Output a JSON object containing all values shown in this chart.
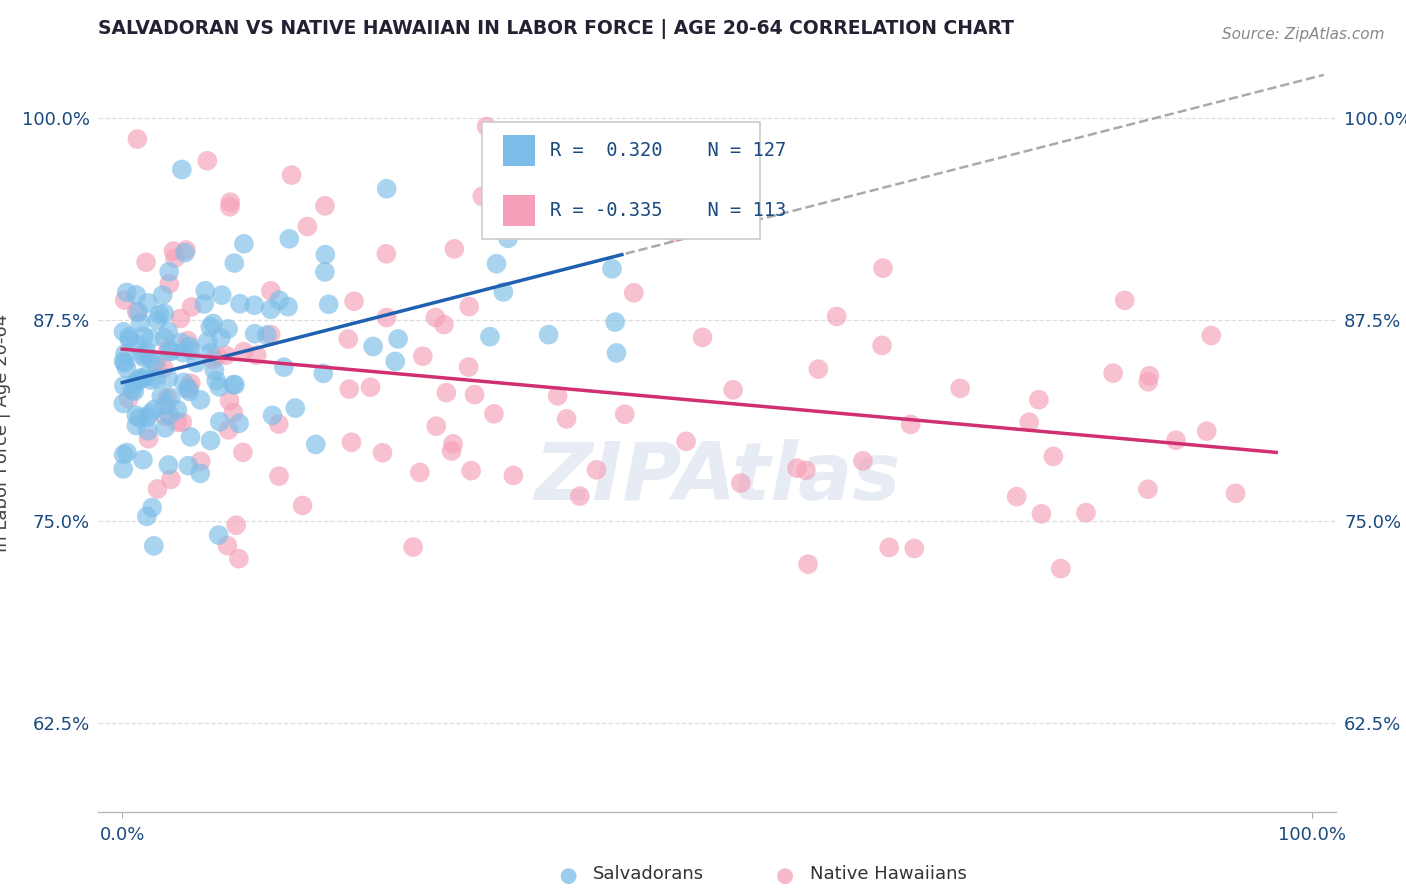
{
  "title": "SALVADORAN VS NATIVE HAWAIIAN IN LABOR FORCE | AGE 20-64 CORRELATION CHART",
  "source": "Source: ZipAtlas.com",
  "ylabel": "In Labor Force | Age 20-64",
  "yticks": [
    0.625,
    0.75,
    0.875,
    1.0
  ],
  "ytick_labels": [
    "62.5%",
    "75.0%",
    "87.5%",
    "100.0%"
  ],
  "xlim": [
    -0.02,
    1.02
  ],
  "ylim": [
    0.57,
    1.04
  ],
  "salvadoran_R": 0.32,
  "salvadoran_N": 127,
  "hawaiian_R": -0.335,
  "hawaiian_N": 113,
  "blue_color": "#7bbde8",
  "pink_color": "#f5a0b8",
  "blue_line_color": "#2060b0",
  "pink_line_color": "#d03070",
  "dash_line_color": "#aaaaaa",
  "title_color": "#222233",
  "source_color": "#888888",
  "legend_text_color": "#1a4a80",
  "background_color": "#ffffff",
  "grid_color": "#dddddd",
  "seed": 7
}
